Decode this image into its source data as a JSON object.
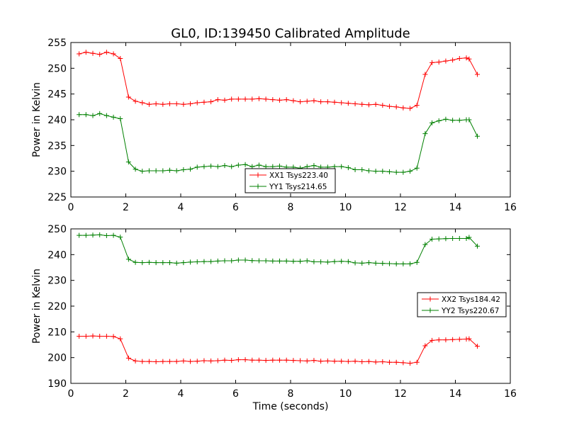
{
  "chart_data": [
    {
      "type": "line",
      "title": "GL0, ID:139450 Calibrated Amplitude",
      "xlabel": "",
      "ylabel": "Power in Kelvin",
      "xlim": [
        0,
        16
      ],
      "ylim": [
        225,
        255
      ],
      "xticks": [
        "0",
        "2",
        "4",
        "6",
        "8",
        "10",
        "12",
        "14",
        "16"
      ],
      "yticks": [
        "225",
        "230",
        "235",
        "240",
        "245",
        "250",
        "255"
      ],
      "grid": false,
      "legend_position": "lower center",
      "x": [
        0.3,
        0.55,
        0.8,
        1.05,
        1.3,
        1.55,
        1.8,
        2.1,
        2.35,
        2.6,
        2.85,
        3.1,
        3.35,
        3.6,
        3.85,
        4.1,
        4.35,
        4.6,
        4.85,
        5.1,
        5.35,
        5.6,
        5.85,
        6.1,
        6.35,
        6.6,
        6.85,
        7.1,
        7.35,
        7.6,
        7.85,
        8.1,
        8.35,
        8.6,
        8.85,
        9.1,
        9.35,
        9.6,
        9.85,
        10.1,
        10.35,
        10.6,
        10.85,
        11.1,
        11.35,
        11.6,
        11.85,
        12.1,
        12.35,
        12.6,
        12.9,
        13.15,
        13.4,
        13.65,
        13.9,
        14.15,
        14.4,
        14.5,
        14.8
      ],
      "series": [
        {
          "name": "XX1 Tsys223.40",
          "color": "#ff0000",
          "values": [
            252.8,
            253.1,
            252.9,
            252.7,
            253.1,
            252.8,
            251.9,
            244.4,
            243.6,
            243.3,
            243.0,
            243.1,
            243.0,
            243.1,
            243.1,
            243.0,
            243.1,
            243.3,
            243.4,
            243.5,
            243.9,
            243.8,
            244.0,
            244.0,
            244.0,
            244.0,
            244.1,
            244.0,
            243.9,
            243.8,
            243.9,
            243.7,
            243.5,
            243.6,
            243.7,
            243.5,
            243.5,
            243.4,
            243.3,
            243.2,
            243.1,
            243.0,
            242.9,
            243.0,
            242.8,
            242.6,
            242.5,
            242.3,
            242.2,
            242.8,
            248.8,
            251.1,
            251.2,
            251.4,
            251.6,
            251.9,
            252.0,
            251.8,
            248.8
          ]
        },
        {
          "name": "YY1 Tsys214.65",
          "color": "#008000",
          "values": [
            241.0,
            241.0,
            240.8,
            241.2,
            240.8,
            240.5,
            240.2,
            231.8,
            230.4,
            230.0,
            230.1,
            230.1,
            230.1,
            230.2,
            230.1,
            230.3,
            230.4,
            230.8,
            230.9,
            231.0,
            230.9,
            231.1,
            230.9,
            231.2,
            231.3,
            230.9,
            231.2,
            230.9,
            230.9,
            231.0,
            230.8,
            230.8,
            230.6,
            230.9,
            231.1,
            230.8,
            230.8,
            230.9,
            230.9,
            230.7,
            230.3,
            230.3,
            230.1,
            230.0,
            230.0,
            229.9,
            229.8,
            229.8,
            230.0,
            230.6,
            237.3,
            239.4,
            239.8,
            240.1,
            239.9,
            239.9,
            240.0,
            240.0,
            236.8
          ]
        }
      ]
    },
    {
      "type": "line",
      "title": "",
      "xlabel": "Time (seconds)",
      "ylabel": "Power in Kelvin",
      "xlim": [
        0,
        16
      ],
      "ylim": [
        190,
        250
      ],
      "xticks": [
        "0",
        "2",
        "4",
        "6",
        "8",
        "10",
        "12",
        "14",
        "16"
      ],
      "yticks": [
        "190",
        "200",
        "210",
        "220",
        "230",
        "240",
        "250"
      ],
      "grid": false,
      "legend_position": "center right",
      "x": [
        0.3,
        0.55,
        0.8,
        1.05,
        1.3,
        1.55,
        1.8,
        2.1,
        2.35,
        2.6,
        2.85,
        3.1,
        3.35,
        3.6,
        3.85,
        4.1,
        4.35,
        4.6,
        4.85,
        5.1,
        5.35,
        5.6,
        5.85,
        6.1,
        6.35,
        6.6,
        6.85,
        7.1,
        7.35,
        7.6,
        7.85,
        8.1,
        8.35,
        8.6,
        8.85,
        9.1,
        9.35,
        9.6,
        9.85,
        10.1,
        10.35,
        10.6,
        10.85,
        11.1,
        11.35,
        11.6,
        11.85,
        12.1,
        12.35,
        12.6,
        12.9,
        13.15,
        13.4,
        13.65,
        13.9,
        14.15,
        14.4,
        14.5,
        14.8
      ],
      "series": [
        {
          "name": "XX2 Tsys184.42",
          "color": "#ff0000",
          "values": [
            208.3,
            208.3,
            208.4,
            208.3,
            208.3,
            208.2,
            207.3,
            199.8,
            198.7,
            198.5,
            198.5,
            198.4,
            198.5,
            198.5,
            198.5,
            198.7,
            198.5,
            198.6,
            198.8,
            198.7,
            198.8,
            199.0,
            198.9,
            199.2,
            199.2,
            199.0,
            199.0,
            198.9,
            199.0,
            199.0,
            199.0,
            198.9,
            198.8,
            198.7,
            198.9,
            198.6,
            198.7,
            198.6,
            198.6,
            198.5,
            198.6,
            198.4,
            198.5,
            198.3,
            198.4,
            198.2,
            198.2,
            198.0,
            197.8,
            198.2,
            204.6,
            206.7,
            206.9,
            206.9,
            207.0,
            207.1,
            207.2,
            207.3,
            204.4
          ]
        },
        {
          "name": "YY2 Tsys220.67",
          "color": "#008000",
          "values": [
            247.5,
            247.5,
            247.6,
            247.7,
            247.4,
            247.5,
            246.8,
            238.2,
            237.0,
            236.9,
            237.0,
            236.9,
            236.9,
            236.9,
            236.7,
            236.9,
            237.1,
            237.2,
            237.3,
            237.3,
            237.5,
            237.6,
            237.6,
            237.9,
            237.9,
            237.7,
            237.6,
            237.6,
            237.5,
            237.5,
            237.5,
            237.4,
            237.4,
            237.6,
            237.2,
            237.2,
            237.1,
            237.3,
            237.4,
            237.3,
            236.8,
            236.7,
            236.9,
            236.7,
            236.6,
            236.5,
            236.4,
            236.4,
            236.4,
            237.0,
            243.9,
            246.0,
            246.1,
            246.2,
            246.3,
            246.3,
            246.3,
            246.7,
            243.3
          ]
        }
      ]
    }
  ]
}
